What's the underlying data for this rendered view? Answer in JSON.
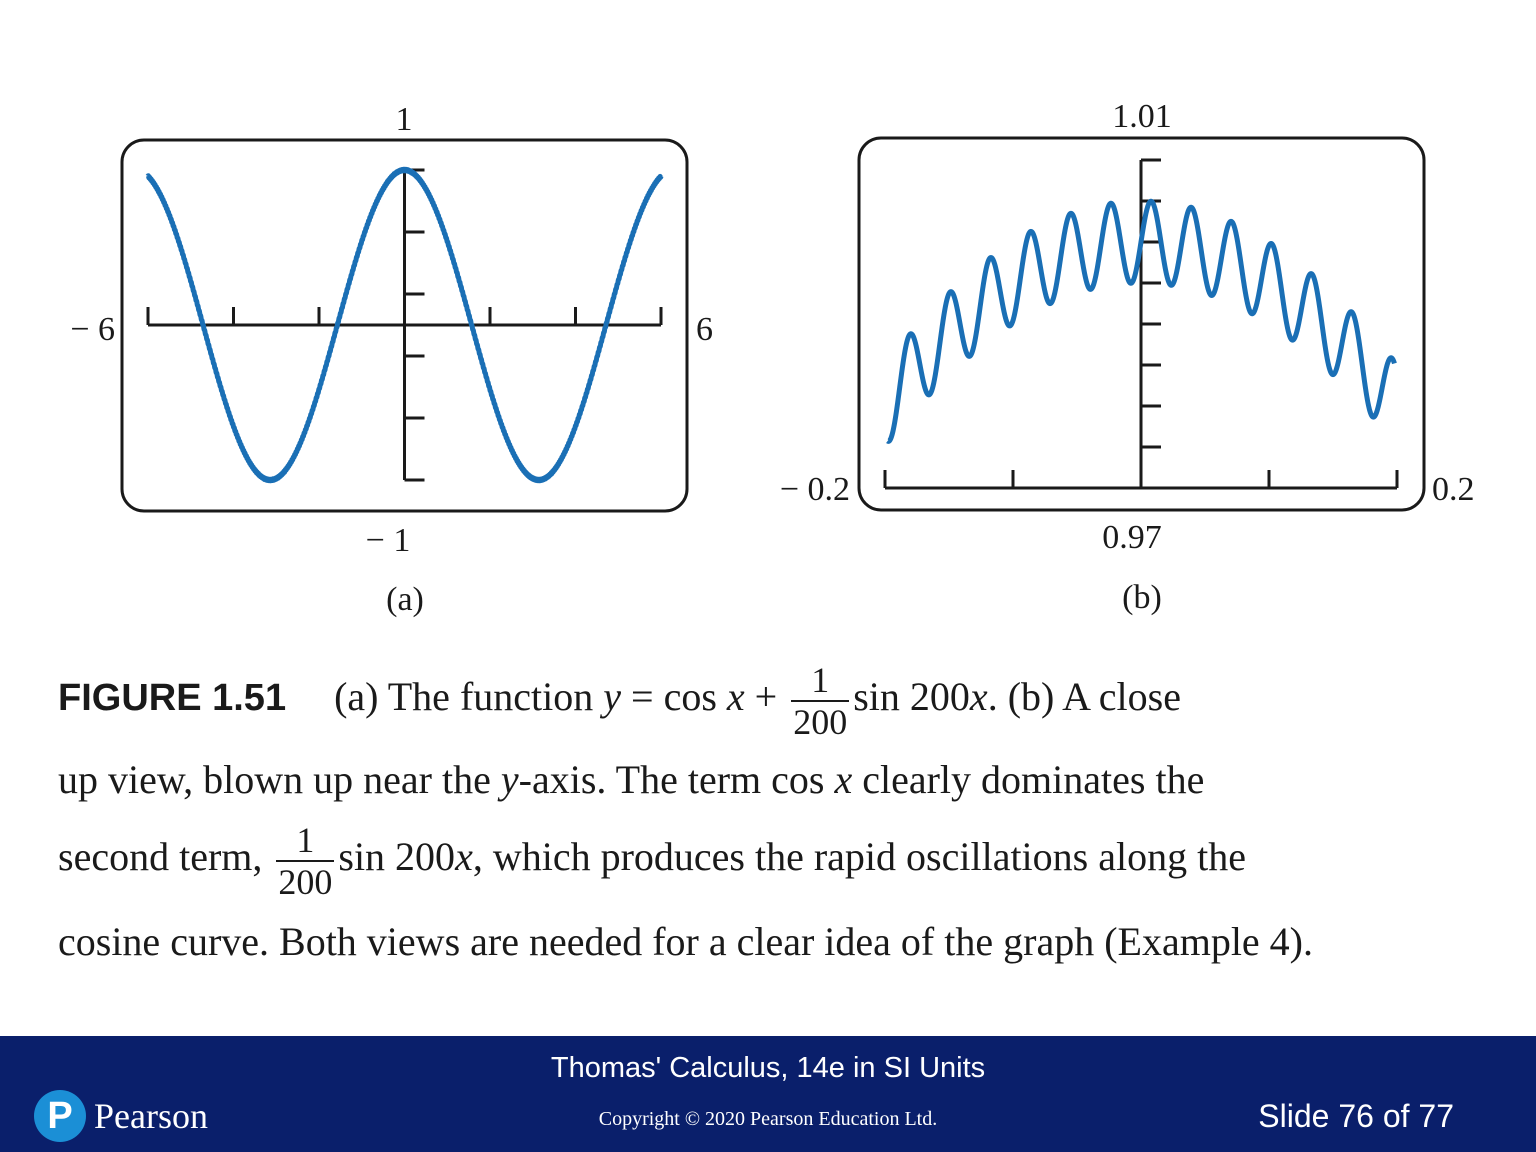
{
  "colors": {
    "curve": "#1a6fb5",
    "axis": "#1a1a1a",
    "footer_bg": "#0a1f6b",
    "logo": "#1b8fd6"
  },
  "chart_data": [
    {
      "type": "line",
      "panel_label": "(a)",
      "function": "y = cos x + (1/200) sin 200x",
      "xlim": [
        -6,
        6
      ],
      "ylim": [
        -1,
        1
      ],
      "x_tick_step": 2,
      "y_tick_step": 0.4,
      "labels": {
        "left": "− 6",
        "right": "6",
        "top": "1",
        "bottom": "− 1"
      },
      "series": [
        {
          "name": "y = cos x + (1/200) sin 200x",
          "amplitude_term": 0.005,
          "frequency": 200
        }
      ]
    },
    {
      "type": "line",
      "panel_label": "(b)",
      "function": "y = cos x + (1/200) sin 200x",
      "xlim": [
        -0.2,
        0.2
      ],
      "ylim": [
        0.97,
        1.01
      ],
      "x_tick_step": 0.1,
      "y_tick_step": 0.005,
      "labels": {
        "left": "− 0.2",
        "right": "0.2",
        "top": "1.01",
        "bottom": "0.97"
      },
      "series": [
        {
          "name": "y = cos x + (1/200) sin 200x",
          "amplitude_term": 0.005,
          "frequency": 200
        }
      ]
    }
  ],
  "caption": {
    "figure_label": "FIGURE 1.51",
    "line1_a": "(a) The function",
    "line1_eq": "= cos",
    "line1_plus": "+",
    "frac_num": "1",
    "frac_den": "200",
    "line1_b": "sin 200",
    "line1_c": ". (b) A close",
    "line2_a": "up view, blown up near the",
    "line2_b": "-axis. The term cos",
    "line2_c": "clearly dominates the",
    "line3_a": "second term,",
    "line3_b": "sin 200",
    "line3_c": ", which produces the rapid oscillations along the",
    "line4": "cosine curve. Both views are needed for a clear idea of the graph (Example 4).",
    "var_x": "x",
    "var_y": "y"
  },
  "footer": {
    "title": "Thomas' Calculus, 14e in SI Units",
    "copyright": "Copyright © 2020 Pearson Education Ltd.",
    "slide": "Slide 76 of 77",
    "logo_letter": "P",
    "logo_word": "Pearson"
  }
}
